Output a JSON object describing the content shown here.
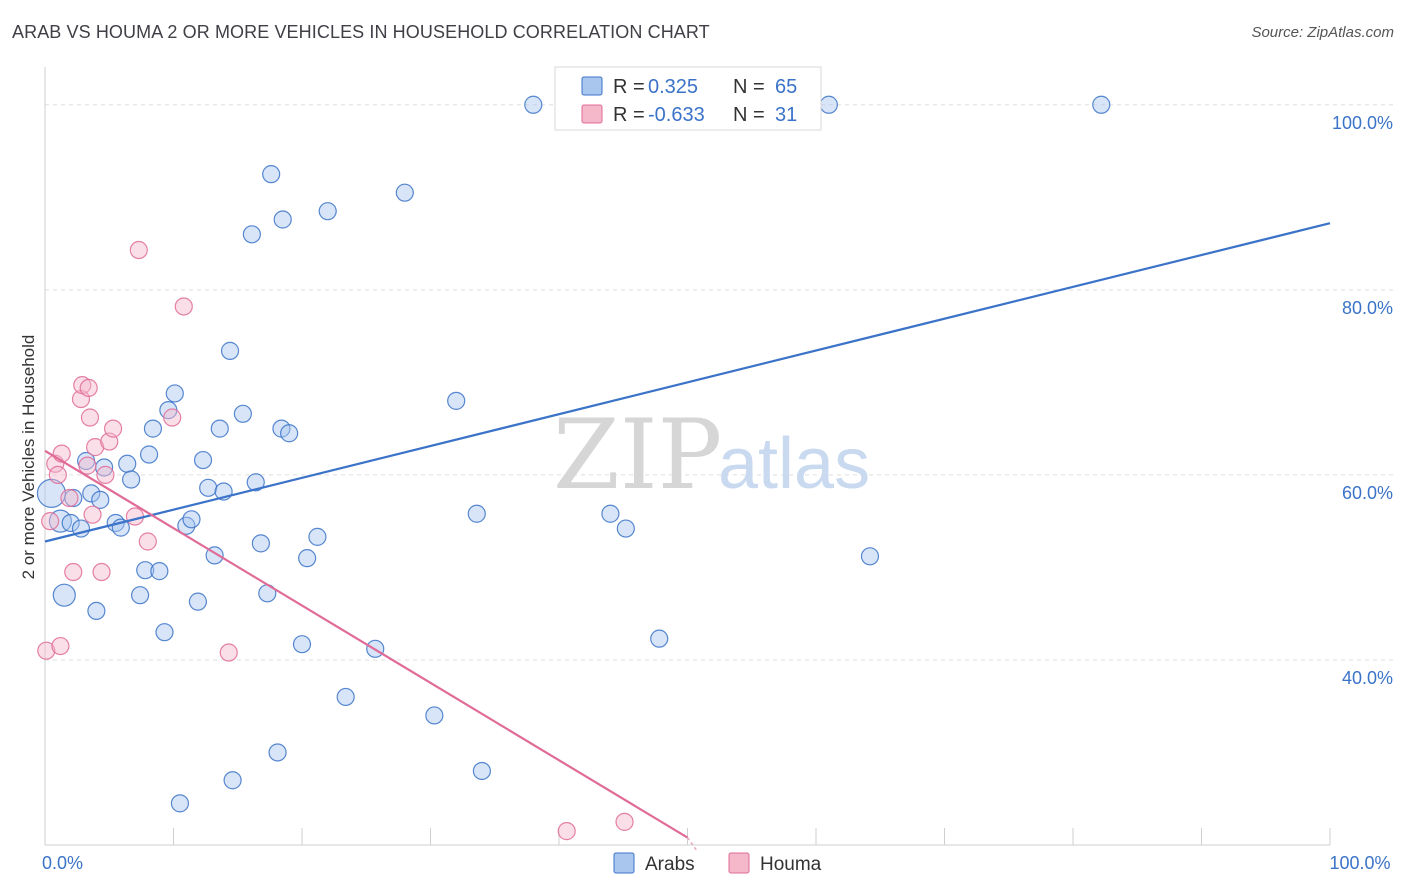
{
  "header": {
    "title": "ARAB VS HOUMA 2 OR MORE VEHICLES IN HOUSEHOLD CORRELATION CHART",
    "source": "Source: ZipAtlas.com"
  },
  "watermark": {
    "zip": "ZIP",
    "atlas": "atlas"
  },
  "colors": {
    "arabs": "#3b73c8",
    "houma": "#e06b97",
    "arabs_fill": "#a9c6ef",
    "houma_fill": "#f5b8cb"
  },
  "chart_data": {
    "type": "scatter",
    "xlabel": "",
    "ylabel": "2 or more Vehicles in Household",
    "xlim": [
      0,
      100
    ],
    "ylim": [
      20,
      103
    ],
    "x_tick_labels": [
      {
        "value": 0,
        "label": "0.0%"
      },
      {
        "value": 100,
        "label": "100.0%"
      }
    ],
    "y_tick_labels": [
      {
        "value": 40,
        "label": "40.0%"
      },
      {
        "value": 60,
        "label": "60.0%"
      },
      {
        "value": 80,
        "label": "80.0%"
      },
      {
        "value": 100,
        "label": "100.0%"
      }
    ],
    "grid": true,
    "legend": {
      "placement": "top-center",
      "rows": [
        {
          "series": "arabs",
          "r_label": "R =",
          "r_value": " 0.325",
          "n_label": "N =",
          "n_value": "65"
        },
        {
          "series": "houma",
          "r_label": "R =",
          "r_value": "-0.633",
          "n_label": "N =",
          "n_value": "31"
        }
      ]
    },
    "series": [
      {
        "name": "Arabs",
        "key": "arabs",
        "trend": {
          "x": [
            0,
            100
          ],
          "y": [
            52.8,
            87.2
          ]
        },
        "points": [
          {
            "x": 0.5,
            "y": 58.0,
            "s": 3
          },
          {
            "x": 1.2,
            "y": 55.0,
            "s": 2
          },
          {
            "x": 1.5,
            "y": 47.0,
            "s": 2
          },
          {
            "x": 2.0,
            "y": 54.8,
            "s": 1
          },
          {
            "x": 2.2,
            "y": 57.5,
            "s": 1
          },
          {
            "x": 2.8,
            "y": 54.2,
            "s": 1
          },
          {
            "x": 3.2,
            "y": 61.5,
            "s": 1
          },
          {
            "x": 3.6,
            "y": 58.0,
            "s": 1
          },
          {
            "x": 4.0,
            "y": 45.3,
            "s": 1
          },
          {
            "x": 4.3,
            "y": 57.3,
            "s": 1
          },
          {
            "x": 4.6,
            "y": 60.8,
            "s": 1
          },
          {
            "x": 5.5,
            "y": 54.8,
            "s": 1
          },
          {
            "x": 5.9,
            "y": 54.3,
            "s": 1
          },
          {
            "x": 6.4,
            "y": 61.2,
            "s": 1
          },
          {
            "x": 6.7,
            "y": 59.5,
            "s": 1
          },
          {
            "x": 7.4,
            "y": 47.0,
            "s": 1
          },
          {
            "x": 7.8,
            "y": 49.7,
            "s": 1
          },
          {
            "x": 8.1,
            "y": 62.2,
            "s": 1
          },
          {
            "x": 8.4,
            "y": 65.0,
            "s": 1
          },
          {
            "x": 8.9,
            "y": 49.6,
            "s": 1
          },
          {
            "x": 9.3,
            "y": 43.0,
            "s": 1
          },
          {
            "x": 9.6,
            "y": 67.0,
            "s": 1
          },
          {
            "x": 10.1,
            "y": 68.8,
            "s": 1
          },
          {
            "x": 10.5,
            "y": 24.5,
            "s": 1
          },
          {
            "x": 11.0,
            "y": 54.5,
            "s": 1
          },
          {
            "x": 11.4,
            "y": 55.2,
            "s": 1
          },
          {
            "x": 11.9,
            "y": 46.3,
            "s": 1
          },
          {
            "x": 12.3,
            "y": 61.6,
            "s": 1
          },
          {
            "x": 12.7,
            "y": 58.6,
            "s": 1
          },
          {
            "x": 13.2,
            "y": 51.3,
            "s": 1
          },
          {
            "x": 13.6,
            "y": 65.0,
            "s": 1
          },
          {
            "x": 13.9,
            "y": 58.2,
            "s": 1
          },
          {
            "x": 14.4,
            "y": 73.4,
            "s": 1
          },
          {
            "x": 14.6,
            "y": 27.0,
            "s": 1
          },
          {
            "x": 15.4,
            "y": 66.6,
            "s": 1
          },
          {
            "x": 16.1,
            "y": 86.0,
            "s": 1
          },
          {
            "x": 16.4,
            "y": 59.2,
            "s": 1
          },
          {
            "x": 16.8,
            "y": 52.6,
            "s": 1
          },
          {
            "x": 17.3,
            "y": 47.2,
            "s": 1
          },
          {
            "x": 17.6,
            "y": 92.5,
            "s": 1
          },
          {
            "x": 18.1,
            "y": 30.0,
            "s": 1
          },
          {
            "x": 18.5,
            "y": 87.6,
            "s": 1
          },
          {
            "x": 18.4,
            "y": 65.0,
            "s": 1
          },
          {
            "x": 19.0,
            "y": 64.5,
            "s": 1
          },
          {
            "x": 20.0,
            "y": 41.7,
            "s": 1
          },
          {
            "x": 20.4,
            "y": 51.0,
            "s": 1
          },
          {
            "x": 21.2,
            "y": 53.3,
            "s": 1
          },
          {
            "x": 22.0,
            "y": 88.5,
            "s": 1
          },
          {
            "x": 23.4,
            "y": 36.0,
            "s": 1
          },
          {
            "x": 25.7,
            "y": 41.2,
            "s": 1
          },
          {
            "x": 28.0,
            "y": 90.5,
            "s": 1
          },
          {
            "x": 30.3,
            "y": 34.0,
            "s": 1
          },
          {
            "x": 32.0,
            "y": 68.0,
            "s": 1
          },
          {
            "x": 33.6,
            "y": 55.8,
            "s": 1
          },
          {
            "x": 34.0,
            "y": 28.0,
            "s": 1
          },
          {
            "x": 38.0,
            "y": 100.0,
            "s": 1
          },
          {
            "x": 44.0,
            "y": 55.8,
            "s": 1
          },
          {
            "x": 45.2,
            "y": 54.2,
            "s": 1
          },
          {
            "x": 47.2,
            "y": 100.0,
            "s": 1
          },
          {
            "x": 47.8,
            "y": 42.3,
            "s": 1
          },
          {
            "x": 61.0,
            "y": 100.0,
            "s": 1
          },
          {
            "x": 64.2,
            "y": 51.2,
            "s": 1
          },
          {
            "x": 82.2,
            "y": 100.0,
            "s": 1
          }
        ]
      },
      {
        "name": "Houma",
        "key": "houma",
        "trend": {
          "x": [
            0,
            50
          ],
          "y": [
            62.6,
            20.8
          ]
        },
        "points": [
          {
            "x": 0.1,
            "y": 41.0,
            "s": 1
          },
          {
            "x": 0.4,
            "y": 55.0,
            "s": 1
          },
          {
            "x": 0.8,
            "y": 61.2,
            "s": 1
          },
          {
            "x": 1.0,
            "y": 60.0,
            "s": 1
          },
          {
            "x": 1.2,
            "y": 41.5,
            "s": 1
          },
          {
            "x": 1.3,
            "y": 62.3,
            "s": 1
          },
          {
            "x": 1.9,
            "y": 57.5,
            "s": 1
          },
          {
            "x": 2.2,
            "y": 49.5,
            "s": 1
          },
          {
            "x": 2.8,
            "y": 68.2,
            "s": 1
          },
          {
            "x": 2.9,
            "y": 69.7,
            "s": 1
          },
          {
            "x": 3.3,
            "y": 61.0,
            "s": 1
          },
          {
            "x": 3.4,
            "y": 69.4,
            "s": 1
          },
          {
            "x": 3.5,
            "y": 66.2,
            "s": 1
          },
          {
            "x": 3.7,
            "y": 55.7,
            "s": 1
          },
          {
            "x": 3.9,
            "y": 63.0,
            "s": 1
          },
          {
            "x": 4.4,
            "y": 49.5,
            "s": 1
          },
          {
            "x": 4.7,
            "y": 60.0,
            "s": 1
          },
          {
            "x": 5.0,
            "y": 63.6,
            "s": 1
          },
          {
            "x": 5.3,
            "y": 65.0,
            "s": 1
          },
          {
            "x": 7.0,
            "y": 55.5,
            "s": 1
          },
          {
            "x": 7.3,
            "y": 84.3,
            "s": 1
          },
          {
            "x": 8.0,
            "y": 52.8,
            "s": 1
          },
          {
            "x": 9.9,
            "y": 66.2,
            "s": 1
          },
          {
            "x": 10.8,
            "y": 78.2,
            "s": 1
          },
          {
            "x": 14.3,
            "y": 40.8,
            "s": 1
          },
          {
            "x": 40.6,
            "y": 21.5,
            "s": 1
          },
          {
            "x": 45.1,
            "y": 22.5,
            "s": 1
          }
        ]
      }
    ]
  },
  "bottom_legend": [
    {
      "key": "arabs",
      "label": "Arabs"
    },
    {
      "key": "houma",
      "label": "Houma"
    }
  ]
}
